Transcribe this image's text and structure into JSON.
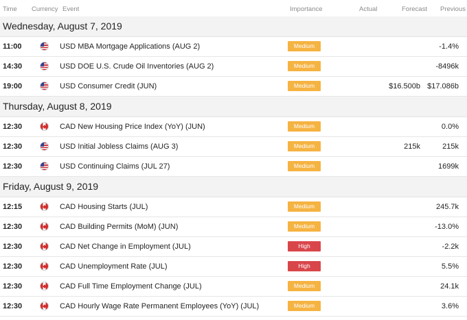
{
  "header": {
    "time": "Time",
    "currency": "Currency",
    "event": "Event",
    "importance": "Importance",
    "actual": "Actual",
    "forecast": "Forecast",
    "previous": "Previous"
  },
  "colors": {
    "medium": "#f5b342",
    "high": "#d9464a"
  },
  "days": [
    {
      "date": "Wednesday, August 7, 2019",
      "rows": [
        {
          "time": "11:00",
          "flag": "us-flag-icon",
          "event": "USD MBA Mortgage Applications (AUG 2)",
          "importance": "Medium",
          "actual": "",
          "forecast": "",
          "previous": "-1.4%"
        },
        {
          "time": "14:30",
          "flag": "us-flag-icon",
          "event": "USD DOE U.S. Crude Oil Inventories (AUG 2)",
          "importance": "Medium",
          "actual": "",
          "forecast": "",
          "previous": "-8496k"
        },
        {
          "time": "19:00",
          "flag": "us-flag-icon",
          "event": "USD Consumer Credit (JUN)",
          "importance": "Medium",
          "actual": "",
          "forecast": "$16.500b",
          "previous": "$17.086b"
        }
      ]
    },
    {
      "date": "Thursday, August 8, 2019",
      "rows": [
        {
          "time": "12:30",
          "flag": "ca-flag-icon",
          "event": "CAD New Housing Price Index (YoY) (JUN)",
          "importance": "Medium",
          "actual": "",
          "forecast": "",
          "previous": "0.0%"
        },
        {
          "time": "12:30",
          "flag": "us-flag-icon",
          "event": "USD Initial Jobless Claims (AUG 3)",
          "importance": "Medium",
          "actual": "",
          "forecast": "215k",
          "previous": "215k"
        },
        {
          "time": "12:30",
          "flag": "us-flag-icon",
          "event": "USD Continuing Claims (JUL 27)",
          "importance": "Medium",
          "actual": "",
          "forecast": "",
          "previous": "1699k"
        }
      ]
    },
    {
      "date": "Friday, August 9, 2019",
      "rows": [
        {
          "time": "12:15",
          "flag": "ca-flag-icon",
          "event": "CAD Housing Starts (JUL)",
          "importance": "Medium",
          "actual": "",
          "forecast": "",
          "previous": "245.7k"
        },
        {
          "time": "12:30",
          "flag": "ca-flag-icon",
          "event": "CAD Building Permits (MoM) (JUN)",
          "importance": "Medium",
          "actual": "",
          "forecast": "",
          "previous": "-13.0%"
        },
        {
          "time": "12:30",
          "flag": "ca-flag-icon",
          "event": "CAD Net Change in Employment (JUL)",
          "importance": "High",
          "actual": "",
          "forecast": "",
          "previous": "-2.2k"
        },
        {
          "time": "12:30",
          "flag": "ca-flag-icon",
          "event": "CAD Unemployment Rate (JUL)",
          "importance": "High",
          "actual": "",
          "forecast": "",
          "previous": "5.5%"
        },
        {
          "time": "12:30",
          "flag": "ca-flag-icon",
          "event": "CAD Full Time Employment Change (JUL)",
          "importance": "Medium",
          "actual": "",
          "forecast": "",
          "previous": "24.1k"
        },
        {
          "time": "12:30",
          "flag": "ca-flag-icon",
          "event": "CAD Hourly Wage Rate Permanent Employees (YoY) (JUL)",
          "importance": "Medium",
          "actual": "",
          "forecast": "",
          "previous": "3.6%"
        }
      ]
    }
  ]
}
